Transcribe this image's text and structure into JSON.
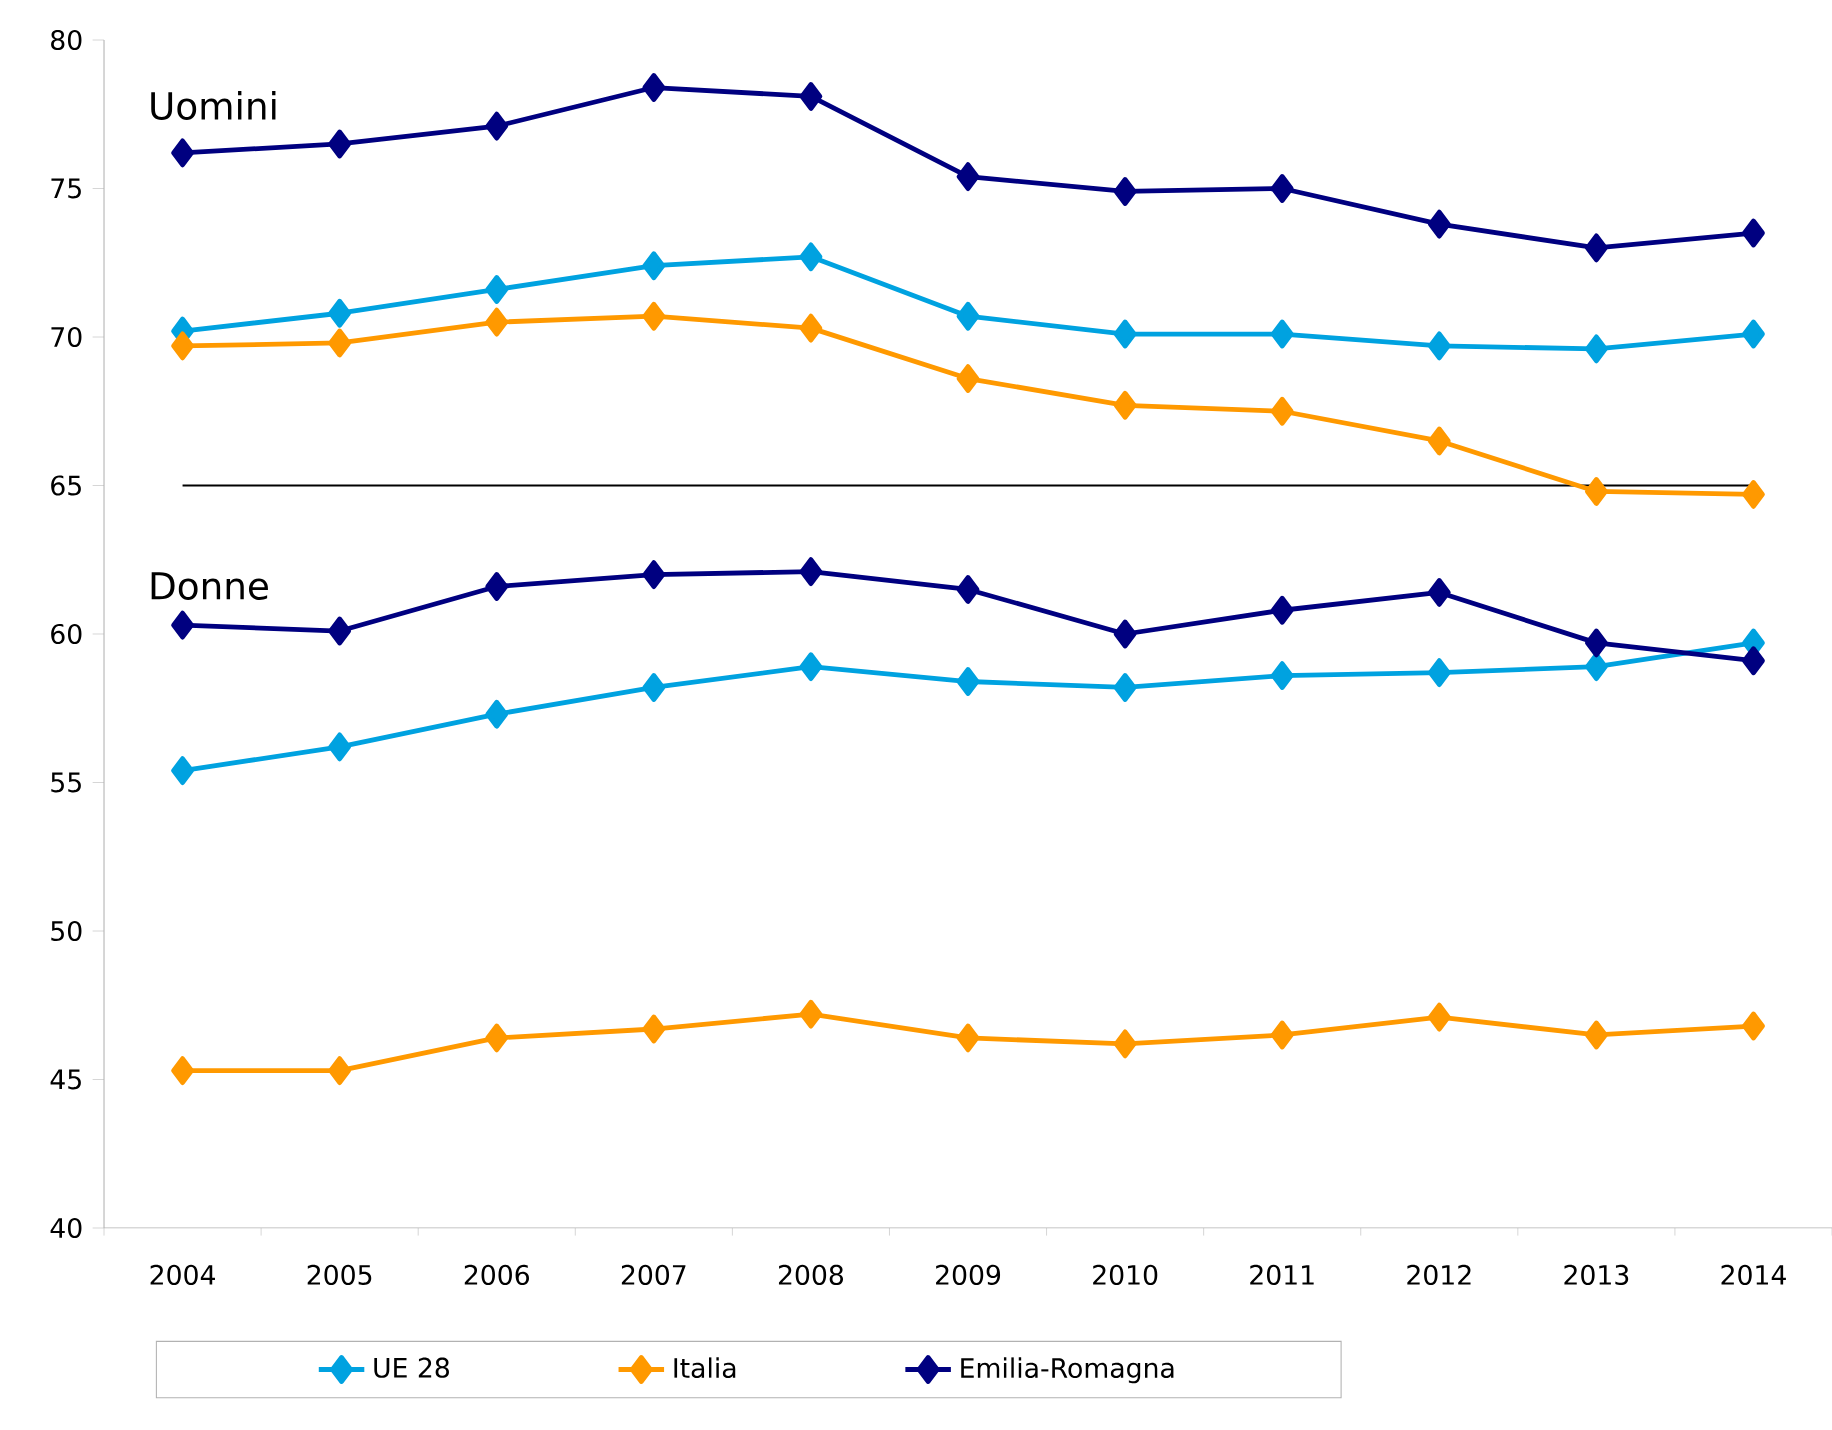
{
  "chart_data": {
    "type": "line",
    "categories": [
      "2004",
      "2005",
      "2006",
      "2007",
      "2008",
      "2009",
      "2010",
      "2011",
      "2012",
      "2013",
      "2014"
    ],
    "series": [
      {
        "name": "UE 28",
        "color": "#00a2e0",
        "values": [
          70.2,
          70.8,
          71.6,
          72.4,
          72.7,
          70.7,
          70.1,
          70.1,
          69.7,
          69.6,
          70.1
        ]
      },
      {
        "name": "Italia",
        "color": "#ff9900",
        "values": [
          69.7,
          69.8,
          70.5,
          70.7,
          70.3,
          68.6,
          67.7,
          67.5,
          66.5,
          64.8,
          64.7
        ]
      },
      {
        "name": "Emilia-Romagna",
        "color": "#000080",
        "values": [
          76.2,
          76.5,
          77.1,
          78.4,
          78.1,
          75.4,
          74.9,
          75.0,
          73.8,
          73.0,
          73.5
        ]
      },
      {
        "color": "#00a2e0",
        "values": [
          55.4,
          56.2,
          57.3,
          58.2,
          58.9,
          58.4,
          58.2,
          58.6,
          58.7,
          58.9,
          59.7
        ]
      },
      {
        "color": "#ff9900",
        "values": [
          45.3,
          45.3,
          46.4,
          46.7,
          47.2,
          46.4,
          46.2,
          46.5,
          47.1,
          46.5,
          46.8
        ]
      },
      {
        "color": "#000080",
        "values": [
          60.3,
          60.1,
          61.6,
          62.0,
          62.1,
          61.5,
          60.0,
          60.8,
          61.4,
          59.7,
          59.1
        ]
      }
    ],
    "ylim": [
      40,
      80
    ],
    "yticks": [
      40,
      45,
      50,
      55,
      60,
      65,
      70,
      75,
      80
    ],
    "ref_lines": [
      {
        "axis": "y",
        "value": 65,
        "color": "#000000"
      }
    ],
    "annotations": [
      "Uomini",
      "Donne"
    ],
    "marker": "diamond",
    "line_style": "solid",
    "grid": false,
    "legend": "bottom"
  }
}
